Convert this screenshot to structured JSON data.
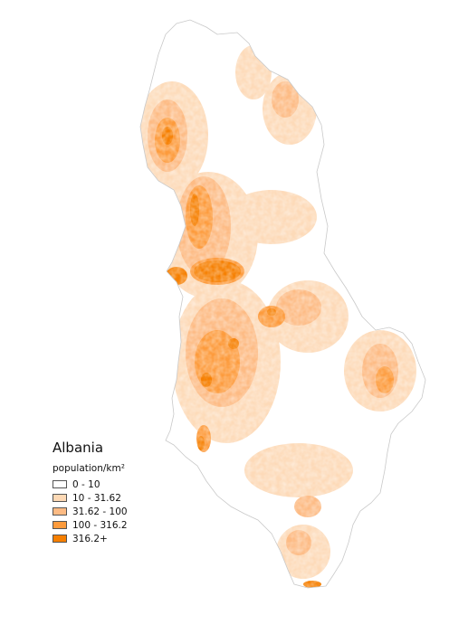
{
  "map": {
    "title": "Albania",
    "legend_title": "population/km²",
    "classes": [
      {
        "label": "0 - 10",
        "color": "#ffffff"
      },
      {
        "label": "10 - 31.62",
        "color": "#fdd9b5"
      },
      {
        "label": "31.62 - 100",
        "color": "#fdbb84"
      },
      {
        "label": "100 - 316.2",
        "color": "#fd9b3c"
      },
      {
        "label": "316.2+",
        "color": "#f67f00"
      }
    ]
  }
}
